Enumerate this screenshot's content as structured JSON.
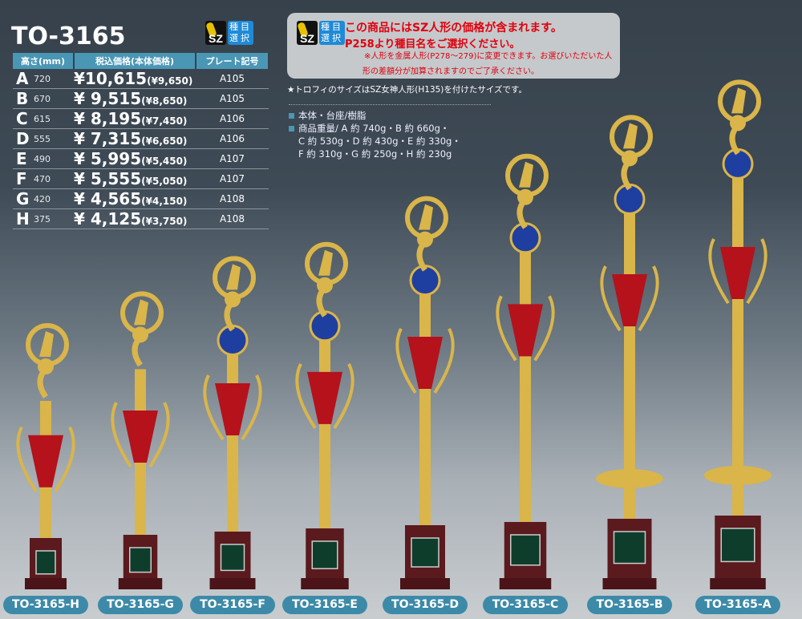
{
  "header": {
    "title": "TO-3165",
    "sz_badge": "SZ",
    "sz_label": "種目選択"
  },
  "table": {
    "columns": [
      "高さ(mm)",
      "税込価格(本体価格)",
      "プレート記号"
    ],
    "rows": [
      {
        "size": "A",
        "height": "720",
        "price": "¥10,615",
        "base": "(¥9,650)",
        "plate": "A105"
      },
      {
        "size": "B",
        "height": "670",
        "price": "¥ 9,515",
        "base": "(¥8,650)",
        "plate": "A105"
      },
      {
        "size": "C",
        "height": "615",
        "price": "¥ 8,195",
        "base": "(¥7,450)",
        "plate": "A106"
      },
      {
        "size": "D",
        "height": "555",
        "price": "¥ 7,315",
        "base": "(¥6,650)",
        "plate": "A106"
      },
      {
        "size": "E",
        "height": "490",
        "price": "¥ 5,995",
        "base": "(¥5,450)",
        "plate": "A107"
      },
      {
        "size": "F",
        "height": "470",
        "price": "¥ 5,555",
        "base": "(¥5,050)",
        "plate": "A107"
      },
      {
        "size": "G",
        "height": "420",
        "price": "¥ 4,565",
        "base": "(¥4,150)",
        "plate": "A108"
      },
      {
        "size": "H",
        "height": "375",
        "price": "¥ 4,125",
        "base": "(¥3,750)",
        "plate": "A108"
      }
    ]
  },
  "notice": {
    "line1": "この商品にはSZ人形の価格が含まれます。",
    "line2": "P258より種目名をご選択ください。",
    "line3": "※人形を金属人形(P278〜279)に変更できます。お選びいただいた人",
    "line4": "形の差額分が加算されますのでご了承ください。"
  },
  "size_note": "★トロフィのサイズはSZ女神人形(H135)を付けたサイズです。",
  "specs": {
    "material": "本体・台座/樹脂",
    "weight_1": "商品重量/ A 約 740g・B 約 660g・",
    "weight_2": "C 約 530g・D 約 430g・E 約 330g・",
    "weight_3": "F 約 310g・G 約 250g・H 約 230g"
  },
  "products": [
    "TO-3165-H",
    "TO-3165-G",
    "TO-3165-F",
    "TO-3165-E",
    "TO-3165-D",
    "TO-3165-C",
    "TO-3165-B",
    "TO-3165-A"
  ],
  "colors": {
    "gold": "#d9b54a",
    "red": "#b5121b",
    "blue": "#1f3fa0",
    "base": "#4a1418",
    "plate": "#0f3d2c",
    "accent": "#4a96b5"
  }
}
